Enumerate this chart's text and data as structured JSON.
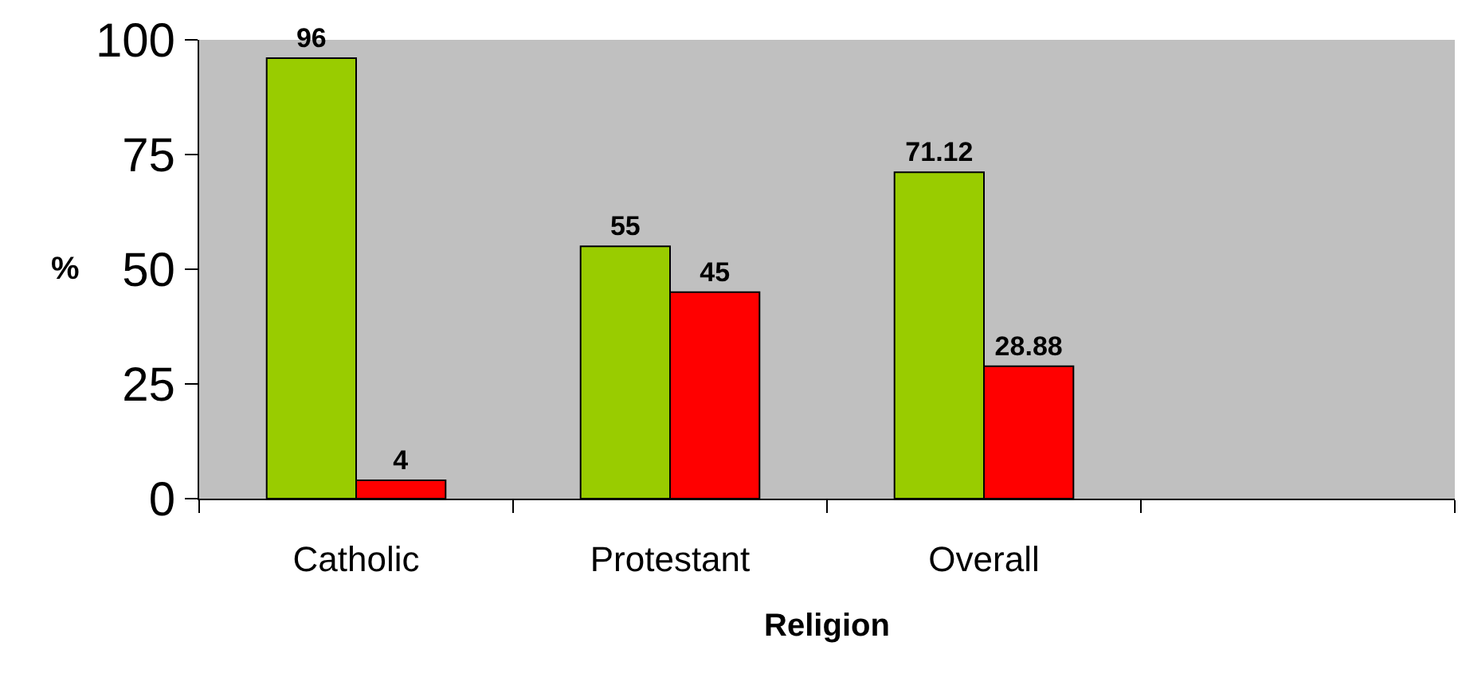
{
  "chart_data": {
    "type": "bar",
    "xlabel": "Religion",
    "ylabel": "%",
    "categories": [
      "Catholic",
      "Protestant",
      "Overall",
      null
    ],
    "series": [
      {
        "color": "#99cc00",
        "values": [
          96,
          55,
          71.12,
          null
        ]
      },
      {
        "color": "#ff0000",
        "values": [
          4,
          45,
          28.88,
          null
        ]
      }
    ],
    "ylim": [
      0,
      100
    ],
    "yticks": [
      0,
      25,
      50,
      75,
      100
    ],
    "grid": false,
    "legend": false,
    "data_labels": true
  }
}
